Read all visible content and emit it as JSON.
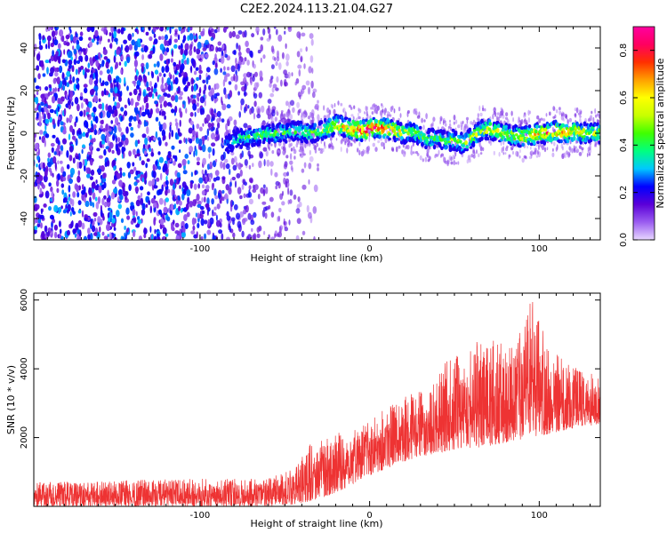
{
  "chart_data": [
    {
      "type": "heatmap",
      "title": "C2E2.2024.113.21.04.G27",
      "xlabel": "Height of straight line (km)",
      "ylabel": "Frequency (Hz)",
      "xlim": [
        -198,
        136
      ],
      "ylim": [
        -50,
        50
      ],
      "xticks": [
        -100,
        0,
        100
      ],
      "yticks": [
        40,
        20,
        0,
        -20,
        -40
      ],
      "grid": false,
      "colorbar": {
        "label": "Normalized spectral amplitude",
        "range": [
          0,
          0.9
        ],
        "ticks": [
          0.0,
          0.2,
          0.4,
          0.6,
          0.8
        ],
        "colormap": [
          "#e8d8ff",
          "#9a5cf0",
          "#5a00d8",
          "#0000ff",
          "#00c8ff",
          "#00ff80",
          "#40ff00",
          "#c8ff00",
          "#ffff00",
          "#ffa000",
          "#ff3000",
          "#ff0060",
          "#ff00a0"
        ]
      },
      "signal_track": {
        "description_x": [
          -85,
          -75,
          -65,
          -55,
          -45,
          -35,
          -25,
          -20,
          -15,
          -10,
          -5,
          0,
          5,
          10,
          15,
          20,
          25,
          30,
          35,
          40,
          45,
          50,
          55,
          60,
          65,
          70,
          75,
          80,
          85,
          90,
          95,
          100,
          105,
          110,
          115,
          120,
          125,
          130,
          135
        ],
        "frequency_hz": [
          -5,
          -2,
          -1,
          0,
          1,
          0,
          2,
          4,
          3,
          2,
          1,
          2,
          3,
          2,
          1,
          0,
          1,
          -1,
          -3,
          -2,
          -4,
          -3,
          -5,
          -2,
          1,
          2,
          1,
          0,
          -1,
          -2,
          -1,
          0,
          0,
          1,
          0,
          1,
          0,
          0,
          0
        ],
        "amplitude": [
          0.3,
          0.45,
          0.45,
          0.5,
          0.45,
          0.5,
          0.6,
          0.7,
          0.75,
          0.85,
          0.85,
          0.9,
          0.85,
          0.8,
          0.75,
          0.6,
          0.55,
          0.5,
          0.5,
          0.45,
          0.5,
          0.55,
          0.55,
          0.6,
          0.6,
          0.65,
          0.6,
          0.6,
          0.65,
          0.7,
          0.7,
          0.7,
          0.75,
          0.8,
          0.75,
          0.7,
          0.65,
          0.6,
          0.6
        ]
      },
      "noise_region_x": [
        -198,
        -55
      ]
    },
    {
      "type": "line",
      "xlabel": "Height of straight line (km)",
      "ylabel": "SNR (10 * v/v)",
      "xlim": [
        -198,
        136
      ],
      "ylim": [
        0,
        6200
      ],
      "xticks": [
        -100,
        0,
        100
      ],
      "yticks": [
        2000,
        4000,
        6000
      ],
      "grid": false,
      "color": "#ee3333",
      "envelope": {
        "x": [
          -198,
          -150,
          -100,
          -60,
          -45,
          -35,
          -25,
          -15,
          -5,
          5,
          20,
          35,
          45,
          55,
          65,
          75,
          85,
          95,
          105,
          115,
          125,
          136
        ],
        "lower": [
          0,
          0,
          0,
          0,
          50,
          150,
          300,
          500,
          800,
          1000,
          1300,
          1500,
          1600,
          1700,
          1700,
          1800,
          1900,
          2000,
          2100,
          2200,
          2300,
          2400
        ],
        "upper": [
          700,
          750,
          800,
          800,
          1100,
          1800,
          2000,
          2200,
          2400,
          2800,
          3200,
          3400,
          4200,
          4500,
          5000,
          4800,
          4600,
          6100,
          4700,
          4400,
          4000,
          3800
        ]
      }
    }
  ]
}
